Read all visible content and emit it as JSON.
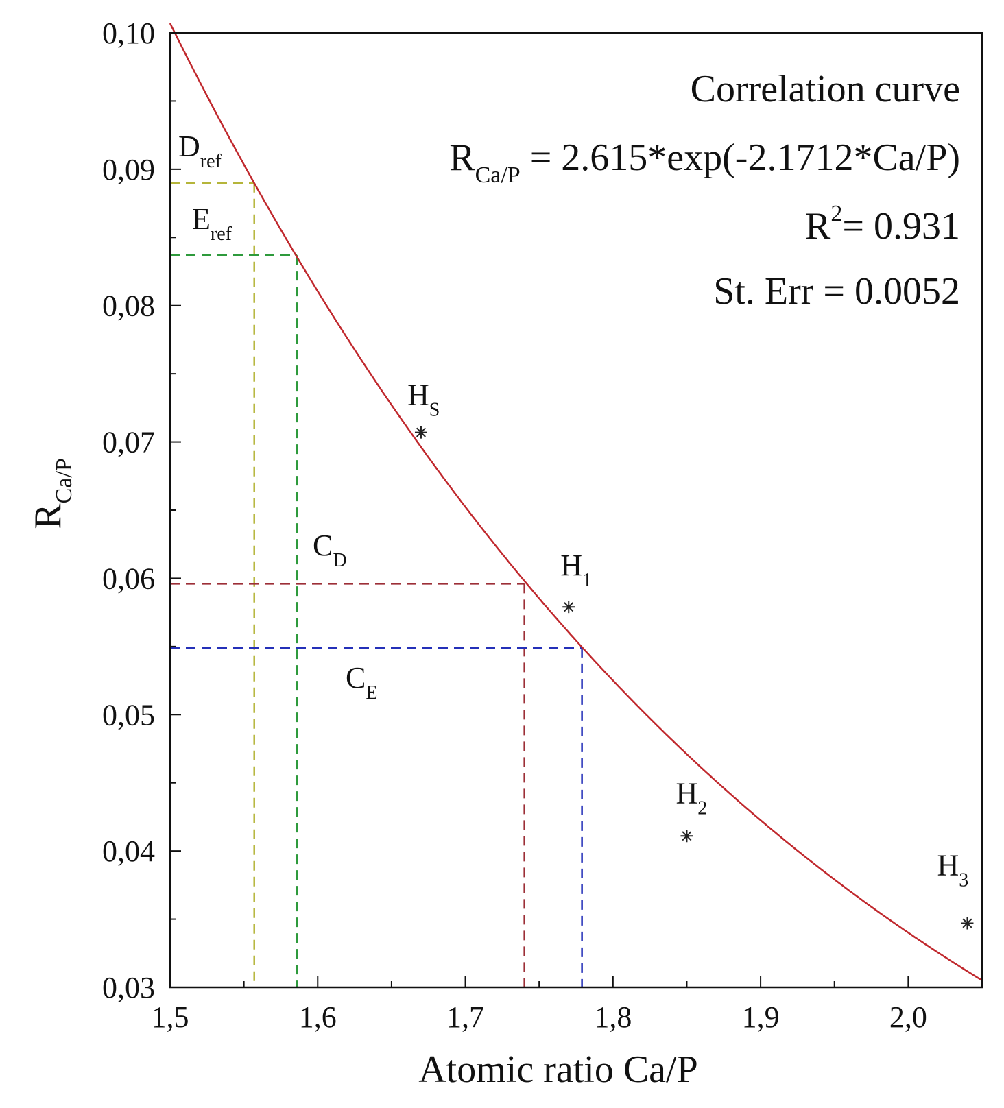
{
  "chart_data": {
    "type": "scatter",
    "xlabel": "Atomic ratio Ca/P",
    "ylabel": {
      "main": "R",
      "sub": "Ca/P"
    },
    "xlim": [
      1.5,
      2.05
    ],
    "ylim": [
      0.03,
      0.1
    ],
    "xticks": [
      1.5,
      1.6,
      1.7,
      1.8,
      1.9,
      2.0
    ],
    "xtick_labels": [
      "1,5",
      "1,6",
      "1,7",
      "1,8",
      "1,9",
      "2,0"
    ],
    "yticks": [
      0.03,
      0.04,
      0.05,
      0.06,
      0.07,
      0.08,
      0.09,
      0.1
    ],
    "ytick_labels": [
      "0,03",
      "0,04",
      "0,05",
      "0,06",
      "0,07",
      "0,08",
      "0,09",
      "0,10"
    ],
    "curve": {
      "name": "Correlation curve",
      "a": 2.615,
      "b": -2.1712,
      "color": "#c0282d"
    },
    "annotation": {
      "title": "Correlation curve",
      "eq_r": "R",
      "eq_sub": "Ca/P",
      "eq_rest": " = 2.615*exp(-2.1712*Ca/P)",
      "r2_r": "R",
      "r2_sup": "2",
      "r2_rest": "= 0.931",
      "st_err": "St. Err = 0.0052"
    },
    "points": [
      {
        "id": "HS",
        "main": "H",
        "sub": "S",
        "x": 1.67,
        "y": 0.0707
      },
      {
        "id": "H1",
        "main": "H",
        "sub": "1",
        "x": 1.77,
        "y": 0.0579
      },
      {
        "id": "H2",
        "main": "H",
        "sub": "2",
        "x": 1.85,
        "y": 0.0411
      },
      {
        "id": "H3",
        "main": "H",
        "sub": "3",
        "x": 2.04,
        "y": 0.0347
      }
    ],
    "reference_lines": [
      {
        "id": "Dref",
        "main": "D",
        "sub": "ref",
        "x": 1.557,
        "y": 0.089,
        "color": "#b5b53a"
      },
      {
        "id": "Eref",
        "main": "E",
        "sub": "ref",
        "x": 1.586,
        "y": 0.0837,
        "color": "#2e9a3c"
      },
      {
        "id": "CD",
        "main": "C",
        "sub": "D",
        "x": 1.74,
        "y": 0.0596,
        "color": "#9c2f37"
      },
      {
        "id": "CE",
        "main": "C",
        "sub": "E",
        "x": 1.779,
        "y": 0.0549,
        "color": "#2430b8"
      }
    ]
  }
}
